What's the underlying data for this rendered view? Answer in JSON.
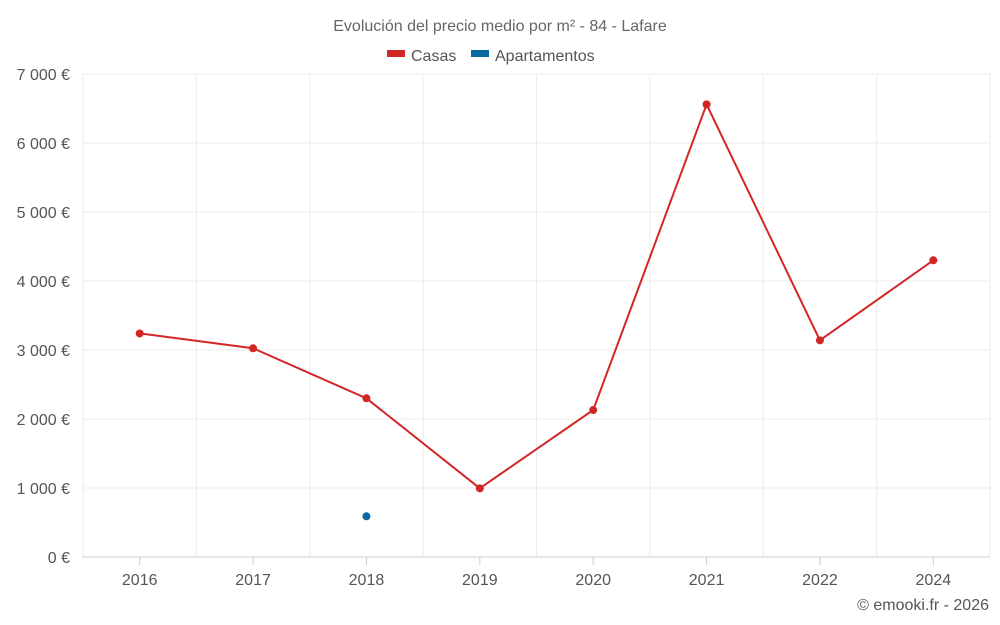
{
  "chart_data": {
    "type": "line",
    "title": "Evolución del precio medio por m² - 84 - Lafare",
    "categories": [
      "2016",
      "2017",
      "2018",
      "2019",
      "2020",
      "2021",
      "2022",
      "2024"
    ],
    "series": [
      {
        "name": "Casas",
        "color": "#d32626",
        "values": [
          3240,
          3025,
          2300,
          995,
          2130,
          6560,
          3140,
          4300
        ]
      },
      {
        "name": "Apartamentos",
        "color": "#0c6aa3",
        "values": [
          null,
          null,
          590,
          null,
          null,
          null,
          null,
          null
        ]
      }
    ],
    "ylim": [
      0,
      7000
    ],
    "yticks": [
      0,
      1000,
      2000,
      3000,
      4000,
      5000,
      6000,
      7000
    ],
    "ytick_labels": [
      "0 €",
      "1 000 €",
      "2 000 €",
      "3 000 €",
      "4 000 €",
      "5 000 €",
      "6 000 €",
      "7 000 €"
    ],
    "xlabel": "",
    "ylabel": "",
    "grid": true,
    "legend_position": "top-center"
  },
  "credit": "© emooki.fr - 2026"
}
